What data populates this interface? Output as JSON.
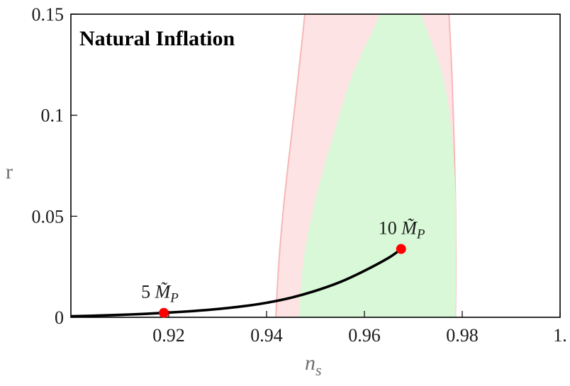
{
  "chart_data": {
    "type": "line",
    "title": "Natural Inflation",
    "xlabel": "n_s",
    "ylabel": "r",
    "xlim": [
      0.9,
      1.0
    ],
    "ylim": [
      0,
      0.15
    ],
    "x_ticks": [
      {
        "value": 0.92,
        "label": "0.92"
      },
      {
        "value": 0.94,
        "label": "0.94"
      },
      {
        "value": 0.96,
        "label": "0.96"
      },
      {
        "value": 0.98,
        "label": "0.98"
      },
      {
        "value": 1.0,
        "label": "1."
      }
    ],
    "y_ticks": [
      {
        "value": 0,
        "label": "0"
      },
      {
        "value": 0.05,
        "label": "0.05"
      },
      {
        "value": 0.1,
        "label": "0.1"
      },
      {
        "value": 0.15,
        "label": "0.15"
      }
    ],
    "grid": false,
    "regions": [
      {
        "name": "outer-contour",
        "color": "#fde3e3",
        "edge_color": "#f6b8b8",
        "left": [
          [
            0.9419,
            0.0
          ],
          [
            0.9426,
            0.03
          ],
          [
            0.9437,
            0.06
          ],
          [
            0.9451,
            0.09
          ],
          [
            0.9465,
            0.12
          ],
          [
            0.9478,
            0.15
          ]
        ],
        "right": [
          [
            0.9786,
            0.0
          ],
          [
            0.9787,
            0.03
          ],
          [
            0.9786,
            0.06
          ],
          [
            0.9783,
            0.09
          ],
          [
            0.9779,
            0.12
          ],
          [
            0.9773,
            0.15
          ]
        ]
      },
      {
        "name": "inner-contour",
        "color": "#d8f8d8",
        "edge_color": "#d8f8d8",
        "left": [
          [
            0.9467,
            0.0
          ],
          [
            0.9478,
            0.03
          ],
          [
            0.9503,
            0.06
          ],
          [
            0.9538,
            0.09
          ],
          [
            0.9577,
            0.12
          ],
          [
            0.9633,
            0.15
          ]
        ],
        "right": [
          [
            0.9785,
            0.0
          ],
          [
            0.9786,
            0.03
          ],
          [
            0.9785,
            0.06
          ],
          [
            0.9777,
            0.09
          ],
          [
            0.9758,
            0.12
          ],
          [
            0.9715,
            0.15
          ]
        ]
      }
    ],
    "series": [
      {
        "color": "#000000",
        "x": [
          0.9,
          0.905,
          0.91,
          0.915,
          0.919,
          0.925,
          0.93,
          0.935,
          0.94,
          0.945,
          0.95,
          0.955,
          0.96,
          0.965,
          0.9675
        ],
        "y": [
          0.0005,
          0.0008,
          0.0012,
          0.0017,
          0.0022,
          0.0031,
          0.0041,
          0.0054,
          0.0072,
          0.0097,
          0.0131,
          0.0174,
          0.023,
          0.0295,
          0.0338
        ]
      }
    ],
    "points": [
      {
        "x": 0.919,
        "y": 0.0022,
        "label": "5 M̃_P",
        "color": "#ff0000"
      },
      {
        "x": 0.9675,
        "y": 0.0338,
        "label": "10 M̃_P",
        "color": "#ff0000"
      }
    ]
  }
}
